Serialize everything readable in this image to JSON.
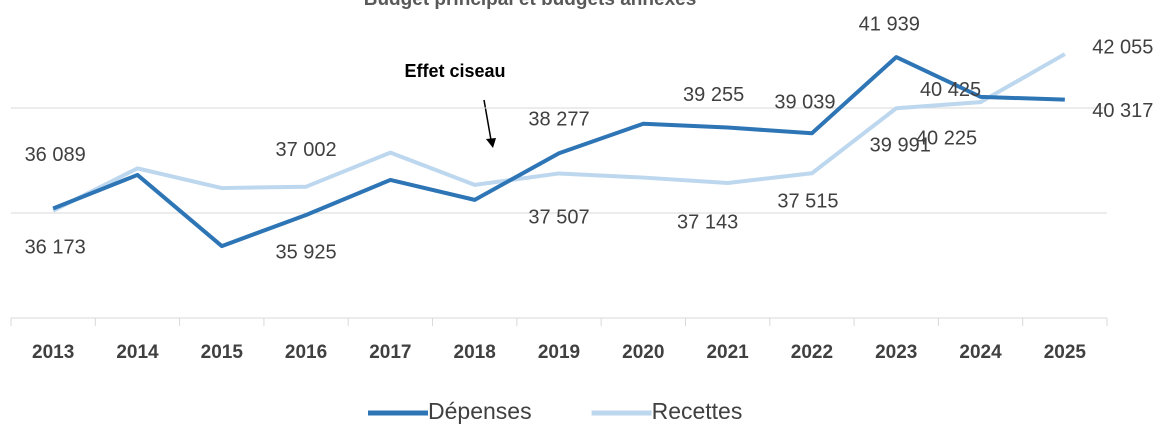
{
  "chart_data": {
    "type": "line",
    "title": "Budget principal et budgets annexes",
    "annotation": "Effet ciseau",
    "categories": [
      "2013",
      "2014",
      "2015",
      "2016",
      "2017",
      "2018",
      "2019",
      "2020",
      "2021",
      "2022",
      "2023",
      "2024",
      "2025"
    ],
    "series": [
      {
        "name": "Dépenses",
        "color": "#2e75b6",
        "values": [
          36173,
          37450,
          34740,
          35925,
          37260,
          36500,
          38277,
          39400,
          39255,
          39039,
          41939,
          40425,
          40317
        ],
        "value_labels": [
          "36 173",
          null,
          null,
          "35 925",
          null,
          null,
          "38 277",
          null,
          "39 255",
          "39 039",
          "41 939",
          "40 425",
          "40 317"
        ]
      },
      {
        "name": "Recettes",
        "color": "#bdd7ee",
        "values": [
          36089,
          37700,
          36950,
          37002,
          38300,
          37070,
          37507,
          37350,
          37143,
          37515,
          39991,
          40225,
          42055
        ],
        "value_labels": [
          "36 089",
          null,
          null,
          "37 002",
          null,
          null,
          "37 507",
          null,
          "37 143",
          "37 515",
          "39 991",
          "40 225",
          "42 055"
        ]
      }
    ],
    "ylim": [
      32000,
      44000
    ],
    "yticks": [
      32000,
      36000,
      40000
    ],
    "grid": true,
    "legend": "bottom"
  }
}
